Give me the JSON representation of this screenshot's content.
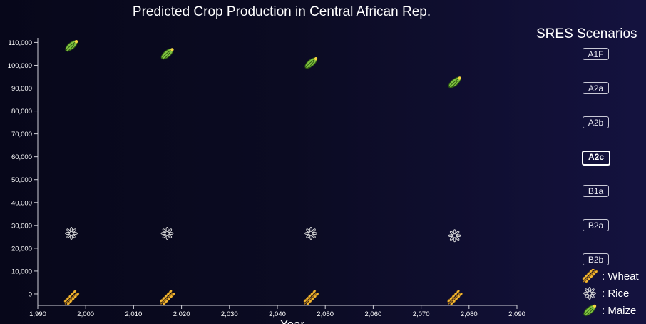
{
  "title": "Predicted Crop Production in Central African Rep.",
  "legend_title": "SRES Scenarios",
  "scenarios": [
    "A1F",
    "A2a",
    "A2b",
    "A2c",
    "B1a",
    "B2a",
    "B2b"
  ],
  "active_scenario": "A2c",
  "crop_legend": [
    {
      "label": ": Wheat",
      "icon": "wheat-icon"
    },
    {
      "label": ": Rice",
      "icon": "rice-icon"
    },
    {
      "label": ": Maize",
      "icon": "maize-icon"
    }
  ],
  "colors": {
    "wheat": "#f2b632",
    "rice": "#d9d9d9",
    "maize": "#7fc241",
    "maize_tip": "#f5d742"
  },
  "chart_data": {
    "type": "scatter",
    "title": "Predicted Crop Production in Central African Rep.",
    "xlabel": "Year",
    "ylabel": "",
    "xlim": [
      1990,
      2090
    ],
    "ylim": [
      -5000,
      112000
    ],
    "x_ticks": [
      "1,990",
      "2,000",
      "2,010",
      "2,020",
      "2,030",
      "2,040",
      "2,050",
      "2,060",
      "2,070",
      "2,080",
      "2,090"
    ],
    "y_ticks": [
      "0",
      "10,000",
      "20,000",
      "30,000",
      "40,000",
      "50,000",
      "60,000",
      "70,000",
      "80,000",
      "90,000",
      "100,000",
      "110,000"
    ],
    "series": [
      {
        "name": "Wheat",
        "x": [
          1997,
          2017,
          2047,
          2077
        ],
        "y": [
          -2000,
          -2000,
          -2000,
          -2000
        ]
      },
      {
        "name": "Rice",
        "x": [
          1997,
          2017,
          2047,
          2077
        ],
        "y": [
          26500,
          26500,
          26500,
          25500
        ]
      },
      {
        "name": "Maize",
        "x": [
          1997,
          2017,
          2047,
          2077
        ],
        "y": [
          108500,
          105000,
          101000,
          92500
        ]
      }
    ]
  }
}
